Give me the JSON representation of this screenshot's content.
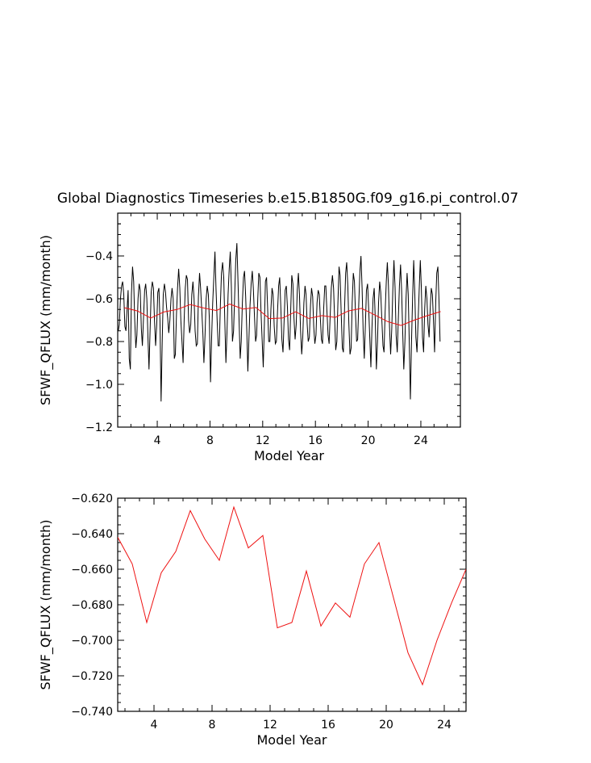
{
  "figure_title": "Global Diagnostics Timeseries b.e15.B1850G.f09_g16.pi_control.07",
  "colors": {
    "monthly_line": "#000000",
    "annual_line": "#ee1111",
    "axes": "#000000",
    "background": "#ffffff"
  },
  "chart_data": [
    {
      "type": "line",
      "title": "Global Diagnostics Timeseries b.e15.B1850G.f09_g16.pi_control.07",
      "xlabel": "Model Year",
      "ylabel": "SFWF_QFLUX (mm/month)",
      "xlim": [
        1,
        27
      ],
      "ylim": [
        -1.2,
        -0.2
      ],
      "x_ticks": [
        4,
        8,
        12,
        16,
        20,
        24
      ],
      "x_tick_labels": [
        "4",
        "8",
        "12",
        "16",
        "20",
        "24"
      ],
      "y_ticks": [
        -1.2,
        -1.0,
        -0.8,
        -0.6,
        -0.4
      ],
      "y_tick_labels": [
        "−1.2",
        "−1.0",
        "−0.8",
        "−0.6",
        "−0.4"
      ],
      "grid": false,
      "series": [
        {
          "style": "monthly",
          "color": "#000000",
          "x_start": 1.0417,
          "x_step": 0.0833333,
          "values": [
            -0.75,
            -0.72,
            -0.6,
            -0.54,
            -0.52,
            -0.58,
            -0.73,
            -0.75,
            -0.65,
            -0.56,
            -0.88,
            -0.93,
            -0.58,
            -0.45,
            -0.52,
            -0.7,
            -0.83,
            -0.77,
            -0.6,
            -0.53,
            -0.56,
            -0.74,
            -0.82,
            -0.69,
            -0.56,
            -0.53,
            -0.6,
            -0.78,
            -0.93,
            -0.74,
            -0.57,
            -0.52,
            -0.55,
            -0.7,
            -0.82,
            -0.72,
            -0.57,
            -0.55,
            -0.7,
            -1.08,
            -0.8,
            -0.58,
            -0.53,
            -0.57,
            -0.64,
            -0.69,
            -0.76,
            -0.7,
            -0.6,
            -0.55,
            -0.6,
            -0.88,
            -0.86,
            -0.67,
            -0.55,
            -0.46,
            -0.55,
            -0.7,
            -0.8,
            -0.9,
            -0.7,
            -0.55,
            -0.49,
            -0.51,
            -0.7,
            -0.76,
            -0.72,
            -0.58,
            -0.52,
            -0.6,
            -0.75,
            -0.82,
            -0.81,
            -0.59,
            -0.48,
            -0.55,
            -0.65,
            -0.76,
            -0.9,
            -0.77,
            -0.6,
            -0.54,
            -0.58,
            -0.7,
            -0.99,
            -0.78,
            -0.62,
            -0.5,
            -0.38,
            -0.55,
            -0.7,
            -0.82,
            -0.82,
            -0.62,
            -0.48,
            -0.43,
            -0.5,
            -0.7,
            -0.9,
            -0.76,
            -0.58,
            -0.46,
            -0.38,
            -0.55,
            -0.8,
            -0.75,
            -0.58,
            -0.42,
            -0.34,
            -0.52,
            -0.7,
            -0.88,
            -0.8,
            -0.62,
            -0.5,
            -0.47,
            -0.59,
            -0.75,
            -0.94,
            -0.78,
            -0.63,
            -0.53,
            -0.47,
            -0.55,
            -0.68,
            -0.8,
            -0.77,
            -0.6,
            -0.48,
            -0.5,
            -0.67,
            -0.79,
            -0.92,
            -0.72,
            -0.52,
            -0.5,
            -0.64,
            -0.8,
            -0.8,
            -0.65,
            -0.55,
            -0.58,
            -0.73,
            -0.81,
            -0.8,
            -0.66,
            -0.54,
            -0.5,
            -0.64,
            -0.79,
            -0.85,
            -0.7,
            -0.56,
            -0.54,
            -0.64,
            -0.79,
            -0.84,
            -0.66,
            -0.49,
            -0.53,
            -0.69,
            -0.79,
            -0.72,
            -0.56,
            -0.48,
            -0.58,
            -0.75,
            -0.86,
            -0.78,
            -0.62,
            -0.54,
            -0.58,
            -0.72,
            -0.8,
            -0.78,
            -0.63,
            -0.55,
            -0.59,
            -0.73,
            -0.81,
            -0.77,
            -0.62,
            -0.56,
            -0.58,
            -0.69,
            -0.79,
            -0.81,
            -0.65,
            -0.54,
            -0.54,
            -0.66,
            -0.77,
            -0.81,
            -0.67,
            -0.55,
            -0.49,
            -0.55,
            -0.69,
            -0.84,
            -0.8,
            -0.62,
            -0.45,
            -0.49,
            -0.67,
            -0.83,
            -0.85,
            -0.65,
            -0.48,
            -0.43,
            -0.54,
            -0.72,
            -0.86,
            -0.83,
            -0.62,
            -0.48,
            -0.52,
            -0.67,
            -0.8,
            -0.79,
            -0.62,
            -0.47,
            -0.4,
            -0.55,
            -0.75,
            -0.88,
            -0.72,
            -0.56,
            -0.53,
            -0.65,
            -0.78,
            -0.92,
            -0.74,
            -0.6,
            -0.55,
            -0.69,
            -0.93,
            -0.8,
            -0.62,
            -0.52,
            -0.57,
            -0.7,
            -0.82,
            -0.85,
            -0.66,
            -0.52,
            -0.43,
            -0.54,
            -0.73,
            -0.86,
            -0.74,
            -0.56,
            -0.42,
            -0.55,
            -0.77,
            -0.85,
            -0.7,
            -0.54,
            -0.44,
            -0.56,
            -0.76,
            -0.93,
            -0.8,
            -0.6,
            -0.48,
            -0.58,
            -0.82,
            -1.07,
            -0.8,
            -0.6,
            -0.42,
            -0.58,
            -0.78,
            -0.85,
            -0.7,
            -0.56,
            -0.42,
            -0.55,
            -0.78,
            -0.85,
            -0.65,
            -0.54,
            -0.6,
            -0.72,
            -0.78,
            -0.65,
            -0.55,
            -0.58,
            -0.7,
            -0.85,
            -0.62,
            -0.48,
            -0.45,
            -0.6,
            -0.8
          ]
        },
        {
          "style": "annual",
          "color": "#ee1111",
          "x": [
            1.5,
            2.5,
            3.5,
            4.5,
            5.5,
            6.5,
            7.5,
            8.5,
            9.5,
            10.5,
            11.5,
            12.5,
            13.5,
            14.5,
            15.5,
            16.5,
            17.5,
            18.5,
            19.5,
            20.5,
            21.5,
            22.5,
            23.5,
            24.5,
            25.5
          ],
          "values": [
            -0.642,
            -0.657,
            -0.69,
            -0.662,
            -0.65,
            -0.627,
            -0.643,
            -0.655,
            -0.625,
            -0.648,
            -0.641,
            -0.693,
            -0.69,
            -0.661,
            -0.692,
            -0.679,
            -0.687,
            -0.657,
            -0.645,
            -0.676,
            -0.707,
            -0.725,
            -0.7,
            -0.679,
            -0.66
          ]
        }
      ]
    },
    {
      "type": "line",
      "title": "",
      "xlabel": "Model Year",
      "ylabel": "SFWF_QFLUX (mm/month)",
      "xlim": [
        1.5,
        25.5
      ],
      "ylim": [
        -0.74,
        -0.62
      ],
      "x_ticks": [
        4,
        8,
        12,
        16,
        20,
        24
      ],
      "x_tick_labels": [
        "4",
        "8",
        "12",
        "16",
        "20",
        "24"
      ],
      "y_ticks": [
        -0.74,
        -0.72,
        -0.7,
        -0.68,
        -0.66,
        -0.64,
        -0.62
      ],
      "y_tick_labels": [
        "−0.740",
        "−0.720",
        "−0.700",
        "−0.680",
        "−0.660",
        "−0.640",
        "−0.620"
      ],
      "grid": false,
      "series": [
        {
          "style": "annual",
          "color": "#ee1111",
          "x": [
            1.5,
            2.5,
            3.5,
            4.5,
            5.5,
            6.5,
            7.5,
            8.5,
            9.5,
            10.5,
            11.5,
            12.5,
            13.5,
            14.5,
            15.5,
            16.5,
            17.5,
            18.5,
            19.5,
            20.5,
            21.5,
            22.5,
            23.5,
            24.5,
            25.5
          ],
          "values": [
            -0.642,
            -0.657,
            -0.69,
            -0.662,
            -0.65,
            -0.627,
            -0.643,
            -0.655,
            -0.625,
            -0.648,
            -0.641,
            -0.693,
            -0.69,
            -0.661,
            -0.692,
            -0.679,
            -0.687,
            -0.657,
            -0.645,
            -0.676,
            -0.707,
            -0.725,
            -0.7,
            -0.679,
            -0.66
          ]
        }
      ]
    }
  ]
}
